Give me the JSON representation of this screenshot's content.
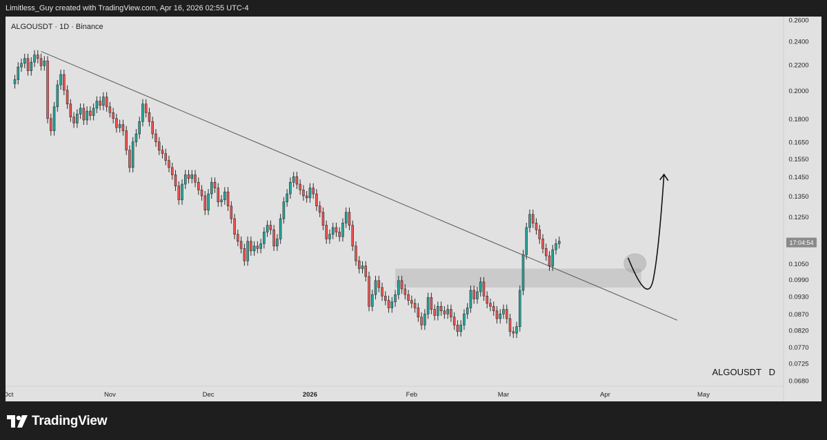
{
  "header": {
    "attribution": "Limitless_Guy created with TradingView.com, Apr 16, 2026 02:55 UTC-4"
  },
  "chart_data": {
    "type": "candlestick",
    "title": "ALGOUSDT · 1D · Binance",
    "symbol_watermark": "ALGOUSDT   D",
    "price_scale": "log",
    "ylim": [
      0.0665,
      0.263
    ],
    "y_ticks": [
      "0.2600",
      "0.2400",
      "0.2200",
      "0.2000",
      "0.1800",
      "0.1650",
      "0.1550",
      "0.1450",
      "0.1350",
      "0.1250",
      "0.1050",
      "0.0990",
      "0.0930",
      "0.0870",
      "0.0820",
      "0.0770",
      "0.0725",
      "0.0680"
    ],
    "x_ticks": [
      {
        "label": "Oct",
        "date": "2025-10-01"
      },
      {
        "label": "Nov",
        "date": "2025-11-01"
      },
      {
        "label": "Dec",
        "date": "2025-12-01"
      },
      {
        "label": "2026",
        "date": "2026-01-01"
      },
      {
        "label": "Feb",
        "date": "2026-02-01"
      },
      {
        "label": "Mar",
        "date": "2026-03-01"
      },
      {
        "label": "Apr",
        "date": "2026-04-01"
      },
      {
        "label": "May",
        "date": "2026-05-01"
      }
    ],
    "x_start": "2025-10-01",
    "x_end": "2026-05-01",
    "price_label": {
      "text": "17:04:54",
      "price": 0.1135
    },
    "closes": [
      0.208,
      0.218,
      0.221,
      0.225,
      0.215,
      0.222,
      0.228,
      0.225,
      0.219,
      0.223,
      0.18,
      0.172,
      0.188,
      0.204,
      0.212,
      0.2,
      0.19,
      0.181,
      0.177,
      0.183,
      0.187,
      0.179,
      0.185,
      0.182,
      0.187,
      0.192,
      0.189,
      0.195,
      0.188,
      0.184,
      0.18,
      0.174,
      0.176,
      0.172,
      0.16,
      0.15,
      0.165,
      0.17,
      0.178,
      0.19,
      0.184,
      0.178,
      0.17,
      0.165,
      0.16,
      0.158,
      0.154,
      0.15,
      0.146,
      0.14,
      0.133,
      0.141,
      0.146,
      0.144,
      0.146,
      0.142,
      0.138,
      0.135,
      0.128,
      0.136,
      0.142,
      0.139,
      0.132,
      0.133,
      0.137,
      0.13,
      0.124,
      0.117,
      0.114,
      0.111,
      0.106,
      0.114,
      0.11,
      0.112,
      0.111,
      0.113,
      0.118,
      0.121,
      0.119,
      0.112,
      0.115,
      0.124,
      0.132,
      0.136,
      0.142,
      0.145,
      0.141,
      0.138,
      0.135,
      0.134,
      0.139,
      0.136,
      0.13,
      0.127,
      0.121,
      0.115,
      0.117,
      0.12,
      0.118,
      0.116,
      0.122,
      0.127,
      0.121,
      0.112,
      0.106,
      0.103,
      0.104,
      0.1,
      0.0895,
      0.0935,
      0.0985,
      0.096,
      0.093,
      0.0915,
      0.089,
      0.091,
      0.0935,
      0.0985,
      0.0955,
      0.0935,
      0.0915,
      0.0905,
      0.089,
      0.086,
      0.0835,
      0.087,
      0.0925,
      0.0885,
      0.0865,
      0.0895,
      0.088,
      0.087,
      0.0885,
      0.086,
      0.0835,
      0.0815,
      0.0835,
      0.087,
      0.089,
      0.095,
      0.092,
      0.0945,
      0.098,
      0.093,
      0.0905,
      0.0895,
      0.088,
      0.0855,
      0.087,
      0.0885,
      0.0855,
      0.0815,
      0.081,
      0.083,
      0.095,
      0.1085,
      0.12,
      0.126,
      0.122,
      0.119,
      0.115,
      0.111,
      0.108,
      0.104,
      0.1105,
      0.113,
      0.114
    ],
    "trendline": {
      "from": {
        "date": "2025-10-11",
        "price": 0.231
      },
      "to": {
        "date": "2026-04-23",
        "price": 0.085
      }
    },
    "zone": {
      "from_date": "2026-01-27",
      "to_date": "2026-04-12",
      "price_low": 0.096,
      "price_high": 0.103
    },
    "projection_arrow": {
      "from": {
        "date": "2026-04-08",
        "price": 0.1072
      },
      "via": {
        "date": "2026-04-14",
        "price": 0.0965
      },
      "to": {
        "date": "2026-04-16",
        "price": 0.134
      }
    },
    "colors": {
      "up": "#26a69a",
      "down": "#ef5350",
      "wick": "#2b2b2b",
      "zone": "#c8c8c8",
      "trendline": "#555555",
      "background": "#e1e1e1"
    }
  },
  "footer": {
    "brand": "TradingView",
    "logo_icon": "tradingview-logo-icon"
  }
}
